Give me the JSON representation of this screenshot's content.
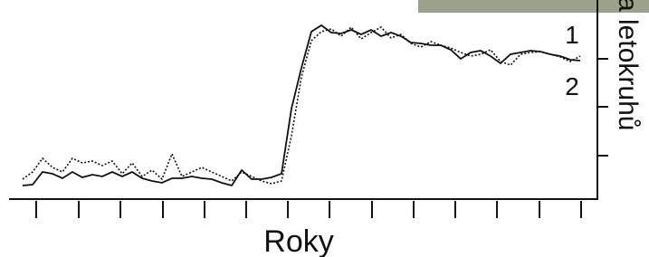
{
  "chart_data": {
    "type": "line",
    "x_label": "Roky",
    "y_label": "a letokruhů",
    "x": [
      0,
      1,
      2,
      3,
      4,
      5,
      6,
      7,
      8,
      9,
      10,
      11,
      12,
      13,
      14,
      15,
      16,
      17,
      18,
      19,
      20,
      21,
      22,
      23,
      24,
      25,
      26,
      27,
      28,
      29,
      30,
      31,
      32,
      33,
      34,
      35,
      36,
      37,
      38,
      39,
      40,
      41,
      42,
      43,
      44,
      45,
      46,
      47,
      48,
      49,
      50,
      51,
      52,
      53,
      54,
      55,
      56
    ],
    "xlim": [
      0,
      56
    ],
    "xticks": [
      1.36,
      5.64,
      9.82,
      14.09,
      18.27,
      22.45,
      26.64,
      30.82,
      35.09,
      39.27,
      43.45,
      47.64,
      51.91,
      56.09
    ],
    "ylim": [
      0,
      220
    ],
    "yticks": [
      48,
      102,
      155
    ],
    "series": [
      {
        "name": "1",
        "color": "#111111",
        "style": "solid",
        "values": [
          15,
          16,
          30,
          28,
          23,
          30,
          24,
          27,
          25,
          30,
          25,
          30,
          23,
          20,
          18,
          23,
          23,
          25,
          23,
          22,
          18,
          15,
          32,
          22,
          22,
          24,
          28,
          100,
          145,
          185,
          192,
          184,
          183,
          187,
          182,
          187,
          180,
          184,
          180,
          173,
          172,
          170,
          170,
          165,
          155,
          162,
          164,
          158,
          150,
          160,
          162,
          164,
          163,
          160,
          158,
          154,
          153
        ]
      },
      {
        "name": "2",
        "color": "#111111",
        "style": "dotted",
        "values": [
          22,
          30,
          45,
          35,
          30,
          45,
          40,
          42,
          37,
          42,
          28,
          40,
          25,
          32,
          22,
          50,
          25,
          30,
          35,
          30,
          25,
          20,
          30,
          25,
          20,
          17,
          20,
          70,
          135,
          175,
          185,
          188,
          180,
          190,
          177,
          184,
          190,
          178,
          182,
          172,
          168,
          174,
          170,
          167,
          162,
          158,
          160,
          165,
          152,
          148,
          160,
          162,
          163,
          160,
          157,
          152,
          158
        ]
      }
    ]
  }
}
